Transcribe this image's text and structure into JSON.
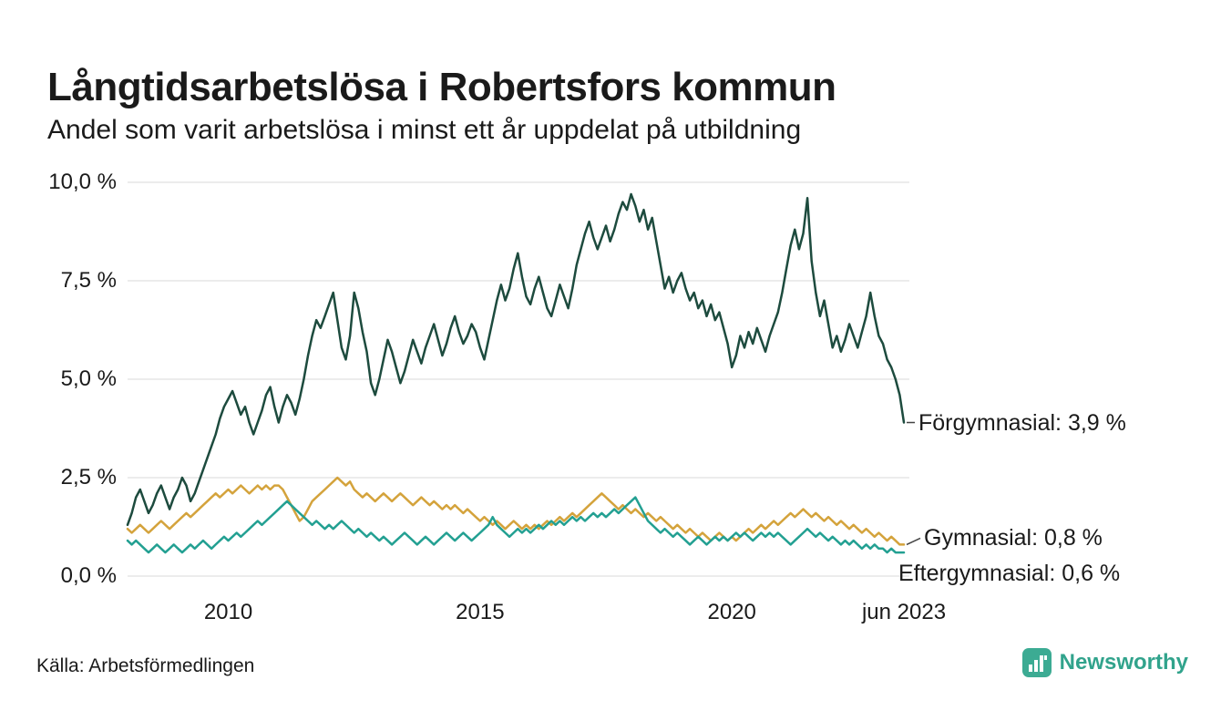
{
  "header": {
    "title": "Långtidsarbetslösa i Robertsfors kommun",
    "subtitle": "Andel som varit arbetslösa i minst ett år uppdelat på utbildning"
  },
  "footer": {
    "source": "Källa: Arbetsförmedlingen",
    "brand": "Newsworthy"
  },
  "colors": {
    "text": "#1a1a1a",
    "grid": "#e0e0e0",
    "leader": "#444444",
    "brand": "#31a38c",
    "brand_icon": "#3cab93",
    "forgymnasial": "#1d4b3e",
    "gymnasial": "#d4a33c",
    "eftergymnasial": "#23a092"
  },
  "chart_data": {
    "type": "line",
    "title": "Långtidsarbetslösa i Robertsfors kommun",
    "subtitle": "Andel som varit arbetslösa i minst ett år uppdelat på utbildning",
    "unit": "%",
    "x_start": "2008-01",
    "x_end": "2023-06",
    "x_frequency": "monthly",
    "x_tick_labels": [
      "2010",
      "2015",
      "2020",
      "jun 2023"
    ],
    "x_tick_positions": [
      24,
      84,
      144,
      185
    ],
    "y_ticks": [
      0,
      2.5,
      5,
      7.5,
      10
    ],
    "y_tick_labels": [
      "0,0 %",
      "2,5 %",
      "5,0 %",
      "7,5 %",
      "10,0 %"
    ],
    "ylim": [
      0,
      10
    ],
    "grid": "horizontal",
    "legend_position": "end-of-line-labels",
    "series": [
      {
        "name": "Förgymnasial",
        "color": "#1d4b3e",
        "end_label": "Förgymnasial: 3,9 %",
        "end_value": 3.9,
        "values": [
          1.3,
          1.6,
          2.0,
          2.2,
          1.9,
          1.6,
          1.8,
          2.1,
          2.3,
          2.0,
          1.7,
          2.0,
          2.2,
          2.5,
          2.3,
          1.9,
          2.1,
          2.4,
          2.7,
          3.0,
          3.3,
          3.6,
          4.0,
          4.3,
          4.5,
          4.7,
          4.4,
          4.1,
          4.3,
          3.9,
          3.6,
          3.9,
          4.2,
          4.6,
          4.8,
          4.3,
          3.9,
          4.3,
          4.6,
          4.4,
          4.1,
          4.5,
          5.0,
          5.6,
          6.1,
          6.5,
          6.3,
          6.6,
          6.9,
          7.2,
          6.5,
          5.8,
          5.5,
          6.1,
          7.2,
          6.8,
          6.2,
          5.7,
          4.9,
          4.6,
          5.0,
          5.5,
          6.0,
          5.7,
          5.3,
          4.9,
          5.2,
          5.6,
          6.0,
          5.7,
          5.4,
          5.8,
          6.1,
          6.4,
          6.0,
          5.6,
          5.9,
          6.3,
          6.6,
          6.2,
          5.9,
          6.1,
          6.4,
          6.2,
          5.8,
          5.5,
          6.0,
          6.5,
          7.0,
          7.4,
          7.0,
          7.3,
          7.8,
          8.2,
          7.6,
          7.1,
          6.9,
          7.3,
          7.6,
          7.2,
          6.8,
          6.6,
          7.0,
          7.4,
          7.1,
          6.8,
          7.3,
          7.9,
          8.3,
          8.7,
          9.0,
          8.6,
          8.3,
          8.6,
          8.9,
          8.5,
          8.8,
          9.2,
          9.5,
          9.3,
          9.7,
          9.4,
          9.0,
          9.3,
          8.8,
          9.1,
          8.5,
          7.9,
          7.3,
          7.6,
          7.2,
          7.5,
          7.7,
          7.3,
          7.0,
          7.2,
          6.8,
          7.0,
          6.6,
          6.9,
          6.5,
          6.7,
          6.3,
          5.9,
          5.3,
          5.6,
          6.1,
          5.8,
          6.2,
          5.9,
          6.3,
          6.0,
          5.7,
          6.1,
          6.4,
          6.7,
          7.2,
          7.8,
          8.4,
          8.8,
          8.3,
          8.7,
          9.6,
          8.0,
          7.2,
          6.6,
          7.0,
          6.4,
          5.8,
          6.1,
          5.7,
          6.0,
          6.4,
          6.1,
          5.8,
          6.2,
          6.6,
          7.2,
          6.6,
          6.1,
          5.9,
          5.5,
          5.3,
          5.0,
          4.6,
          3.9
        ]
      },
      {
        "name": "Gymnasial",
        "color": "#d4a33c",
        "end_label": "Gymnasial: 0,8 %",
        "end_value": 0.8,
        "values": [
          1.2,
          1.1,
          1.2,
          1.3,
          1.2,
          1.1,
          1.2,
          1.3,
          1.4,
          1.3,
          1.2,
          1.3,
          1.4,
          1.5,
          1.6,
          1.5,
          1.6,
          1.7,
          1.8,
          1.9,
          2.0,
          2.1,
          2.0,
          2.1,
          2.2,
          2.1,
          2.2,
          2.3,
          2.2,
          2.1,
          2.2,
          2.3,
          2.2,
          2.3,
          2.2,
          2.3,
          2.3,
          2.2,
          2.0,
          1.8,
          1.6,
          1.4,
          1.5,
          1.7,
          1.9,
          2.0,
          2.1,
          2.2,
          2.3,
          2.4,
          2.5,
          2.4,
          2.3,
          2.4,
          2.2,
          2.1,
          2.0,
          2.1,
          2.0,
          1.9,
          2.0,
          2.1,
          2.0,
          1.9,
          2.0,
          2.1,
          2.0,
          1.9,
          1.8,
          1.9,
          2.0,
          1.9,
          1.8,
          1.9,
          1.8,
          1.7,
          1.8,
          1.7,
          1.8,
          1.7,
          1.6,
          1.7,
          1.6,
          1.5,
          1.4,
          1.5,
          1.4,
          1.3,
          1.4,
          1.3,
          1.2,
          1.3,
          1.4,
          1.3,
          1.2,
          1.3,
          1.2,
          1.3,
          1.2,
          1.3,
          1.4,
          1.3,
          1.4,
          1.5,
          1.4,
          1.5,
          1.6,
          1.5,
          1.6,
          1.7,
          1.8,
          1.9,
          2.0,
          2.1,
          2.0,
          1.9,
          1.8,
          1.7,
          1.8,
          1.7,
          1.6,
          1.7,
          1.6,
          1.5,
          1.6,
          1.5,
          1.4,
          1.5,
          1.4,
          1.3,
          1.2,
          1.3,
          1.2,
          1.1,
          1.2,
          1.1,
          1.0,
          1.1,
          1.0,
          0.9,
          1.0,
          1.1,
          1.0,
          0.9,
          1.0,
          0.9,
          1.0,
          1.1,
          1.2,
          1.1,
          1.2,
          1.3,
          1.2,
          1.3,
          1.4,
          1.3,
          1.4,
          1.5,
          1.6,
          1.5,
          1.6,
          1.7,
          1.6,
          1.5,
          1.6,
          1.5,
          1.4,
          1.5,
          1.4,
          1.3,
          1.4,
          1.3,
          1.2,
          1.3,
          1.2,
          1.1,
          1.2,
          1.1,
          1.0,
          1.1,
          1.0,
          0.9,
          1.0,
          0.9,
          0.8,
          0.8
        ]
      },
      {
        "name": "Eftergymnasial",
        "color": "#23a092",
        "end_label": "Eftergymnasial: 0,6 %",
        "end_value": 0.6,
        "values": [
          0.9,
          0.8,
          0.9,
          0.8,
          0.7,
          0.6,
          0.7,
          0.8,
          0.7,
          0.6,
          0.7,
          0.8,
          0.7,
          0.6,
          0.7,
          0.8,
          0.7,
          0.8,
          0.9,
          0.8,
          0.7,
          0.8,
          0.9,
          1.0,
          0.9,
          1.0,
          1.1,
          1.0,
          1.1,
          1.2,
          1.3,
          1.4,
          1.3,
          1.4,
          1.5,
          1.6,
          1.7,
          1.8,
          1.9,
          1.8,
          1.7,
          1.6,
          1.5,
          1.4,
          1.3,
          1.4,
          1.3,
          1.2,
          1.3,
          1.2,
          1.3,
          1.4,
          1.3,
          1.2,
          1.1,
          1.2,
          1.1,
          1.0,
          1.1,
          1.0,
          0.9,
          1.0,
          0.9,
          0.8,
          0.9,
          1.0,
          1.1,
          1.0,
          0.9,
          0.8,
          0.9,
          1.0,
          0.9,
          0.8,
          0.9,
          1.0,
          1.1,
          1.0,
          0.9,
          1.0,
          1.1,
          1.0,
          0.9,
          1.0,
          1.1,
          1.2,
          1.3,
          1.5,
          1.3,
          1.2,
          1.1,
          1.0,
          1.1,
          1.2,
          1.1,
          1.2,
          1.1,
          1.2,
          1.3,
          1.2,
          1.3,
          1.4,
          1.3,
          1.4,
          1.3,
          1.4,
          1.5,
          1.4,
          1.5,
          1.4,
          1.5,
          1.6,
          1.5,
          1.6,
          1.5,
          1.6,
          1.7,
          1.6,
          1.7,
          1.8,
          1.9,
          2.0,
          1.8,
          1.6,
          1.4,
          1.3,
          1.2,
          1.1,
          1.2,
          1.1,
          1.0,
          1.1,
          1.0,
          0.9,
          0.8,
          0.9,
          1.0,
          0.9,
          0.8,
          0.9,
          1.0,
          0.9,
          1.0,
          0.9,
          1.0,
          1.1,
          1.0,
          1.1,
          1.0,
          0.9,
          1.0,
          1.1,
          1.0,
          1.1,
          1.0,
          1.1,
          1.0,
          0.9,
          0.8,
          0.9,
          1.0,
          1.1,
          1.2,
          1.1,
          1.0,
          1.1,
          1.0,
          0.9,
          1.0,
          0.9,
          0.8,
          0.9,
          0.8,
          0.9,
          0.8,
          0.7,
          0.8,
          0.7,
          0.8,
          0.7,
          0.7,
          0.6,
          0.7,
          0.6,
          0.6,
          0.6
        ]
      }
    ]
  }
}
